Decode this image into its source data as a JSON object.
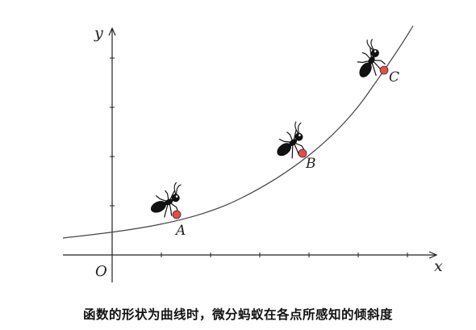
{
  "axes": {
    "x_label": "x",
    "y_label": "y",
    "origin_label": "O"
  },
  "points": [
    {
      "label": "A"
    },
    {
      "label": "B"
    },
    {
      "label": "C"
    }
  ],
  "caption": "函数的形状为曲线时，微分蚂蚁在各点所感知的倾斜度",
  "colors": {
    "point_fill": "#e84b4b",
    "curve": "#444444",
    "axis": "#222222",
    "ant": "#111111"
  },
  "icons": [
    "ant-icon"
  ]
}
